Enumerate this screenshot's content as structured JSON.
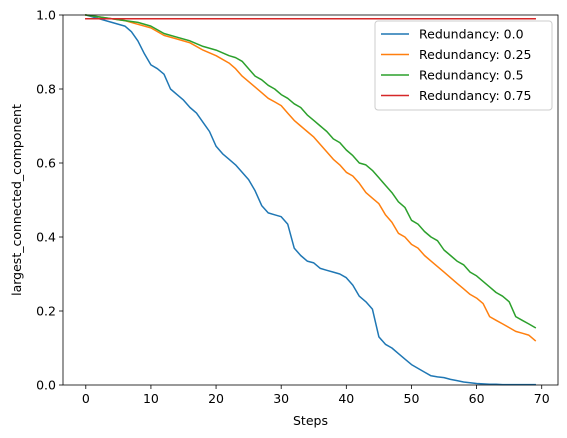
{
  "chart_data": {
    "type": "line",
    "xlabel": "Steps",
    "ylabel": "largest_connected_component",
    "xlim": [
      -3.5,
      72.5
    ],
    "ylim": [
      0.0,
      1.0
    ],
    "xticks": [
      "0",
      "10",
      "20",
      "30",
      "40",
      "50",
      "60",
      "70"
    ],
    "yticks": [
      "0.0",
      "0.2",
      "0.4",
      "0.6",
      "0.8",
      "1.0"
    ],
    "grid": false,
    "legend_position": "top-right",
    "series": [
      {
        "name": "Redundancy: 0.0",
        "color": "#1f77b4",
        "x": [
          0,
          2,
          4,
          6,
          7,
          8,
          9,
          10,
          11,
          12,
          13,
          14,
          15,
          16,
          17,
          18,
          19,
          20,
          21,
          22,
          23,
          24,
          25,
          26,
          27,
          28,
          29,
          30,
          31,
          32,
          33,
          34,
          35,
          36,
          37,
          38,
          39,
          40,
          41,
          42,
          43,
          44,
          45,
          46,
          47,
          48,
          49,
          50,
          51,
          52,
          53,
          54,
          55,
          56,
          57,
          58,
          59,
          60,
          61,
          62,
          63,
          64,
          65,
          66,
          67,
          68,
          69
        ],
        "values": [
          1.0,
          0.99,
          0.98,
          0.97,
          0.955,
          0.93,
          0.895,
          0.865,
          0.855,
          0.84,
          0.8,
          0.785,
          0.77,
          0.75,
          0.735,
          0.71,
          0.685,
          0.645,
          0.625,
          0.61,
          0.595,
          0.575,
          0.555,
          0.525,
          0.485,
          0.465,
          0.46,
          0.455,
          0.435,
          0.37,
          0.35,
          0.335,
          0.33,
          0.315,
          0.31,
          0.305,
          0.3,
          0.29,
          0.27,
          0.24,
          0.225,
          0.205,
          0.13,
          0.11,
          0.1,
          0.085,
          0.07,
          0.055,
          0.045,
          0.035,
          0.025,
          0.022,
          0.02,
          0.015,
          0.012,
          0.008,
          0.006,
          0.004,
          0.003,
          0.002,
          0.002,
          0.001,
          0.001,
          0.001,
          0.001,
          0.001,
          0.001
        ]
      },
      {
        "name": "Redundancy: 0.25",
        "color": "#ff7f0e",
        "x": [
          0,
          2,
          4,
          6,
          8,
          10,
          12,
          14,
          16,
          18,
          20,
          22,
          23,
          24,
          25,
          26,
          27,
          28,
          29,
          30,
          31,
          32,
          33,
          34,
          35,
          36,
          37,
          38,
          39,
          40,
          41,
          42,
          43,
          44,
          45,
          46,
          47,
          48,
          49,
          50,
          51,
          52,
          53,
          54,
          55,
          56,
          57,
          58,
          59,
          60,
          61,
          62,
          63,
          64,
          65,
          66,
          67,
          68,
          69
        ],
        "values": [
          1.0,
          0.995,
          0.99,
          0.985,
          0.975,
          0.965,
          0.945,
          0.935,
          0.925,
          0.905,
          0.89,
          0.87,
          0.855,
          0.835,
          0.82,
          0.805,
          0.79,
          0.775,
          0.765,
          0.755,
          0.735,
          0.715,
          0.7,
          0.685,
          0.67,
          0.65,
          0.63,
          0.61,
          0.595,
          0.575,
          0.565,
          0.545,
          0.52,
          0.505,
          0.49,
          0.46,
          0.44,
          0.41,
          0.4,
          0.38,
          0.37,
          0.35,
          0.335,
          0.32,
          0.305,
          0.29,
          0.275,
          0.26,
          0.245,
          0.235,
          0.22,
          0.185,
          0.175,
          0.165,
          0.155,
          0.145,
          0.14,
          0.135,
          0.12
        ]
      },
      {
        "name": "Redundancy: 0.5",
        "color": "#2ca02c",
        "x": [
          0,
          2,
          4,
          6,
          8,
          10,
          12,
          14,
          16,
          18,
          20,
          22,
          23,
          24,
          25,
          26,
          27,
          28,
          29,
          30,
          31,
          32,
          33,
          34,
          35,
          36,
          37,
          38,
          39,
          40,
          41,
          42,
          43,
          44,
          45,
          46,
          47,
          48,
          49,
          50,
          51,
          52,
          53,
          54,
          55,
          56,
          57,
          58,
          59,
          60,
          61,
          62,
          63,
          64,
          65,
          66,
          67,
          68,
          69
        ],
        "values": [
          1.0,
          0.995,
          0.99,
          0.985,
          0.98,
          0.97,
          0.95,
          0.94,
          0.93,
          0.915,
          0.905,
          0.89,
          0.885,
          0.875,
          0.855,
          0.835,
          0.825,
          0.81,
          0.8,
          0.785,
          0.775,
          0.76,
          0.75,
          0.73,
          0.715,
          0.7,
          0.685,
          0.665,
          0.655,
          0.635,
          0.62,
          0.6,
          0.595,
          0.58,
          0.56,
          0.54,
          0.52,
          0.495,
          0.48,
          0.445,
          0.435,
          0.415,
          0.4,
          0.39,
          0.365,
          0.35,
          0.335,
          0.325,
          0.305,
          0.295,
          0.28,
          0.265,
          0.25,
          0.24,
          0.225,
          0.185,
          0.175,
          0.165,
          0.155
        ]
      },
      {
        "name": "Redundancy: 0.75",
        "color": "#d62728",
        "x": [
          0,
          10,
          20,
          30,
          40,
          50,
          60,
          69
        ],
        "values": [
          0.99,
          0.99,
          0.99,
          0.99,
          0.99,
          0.99,
          0.99,
          0.99
        ]
      }
    ]
  }
}
